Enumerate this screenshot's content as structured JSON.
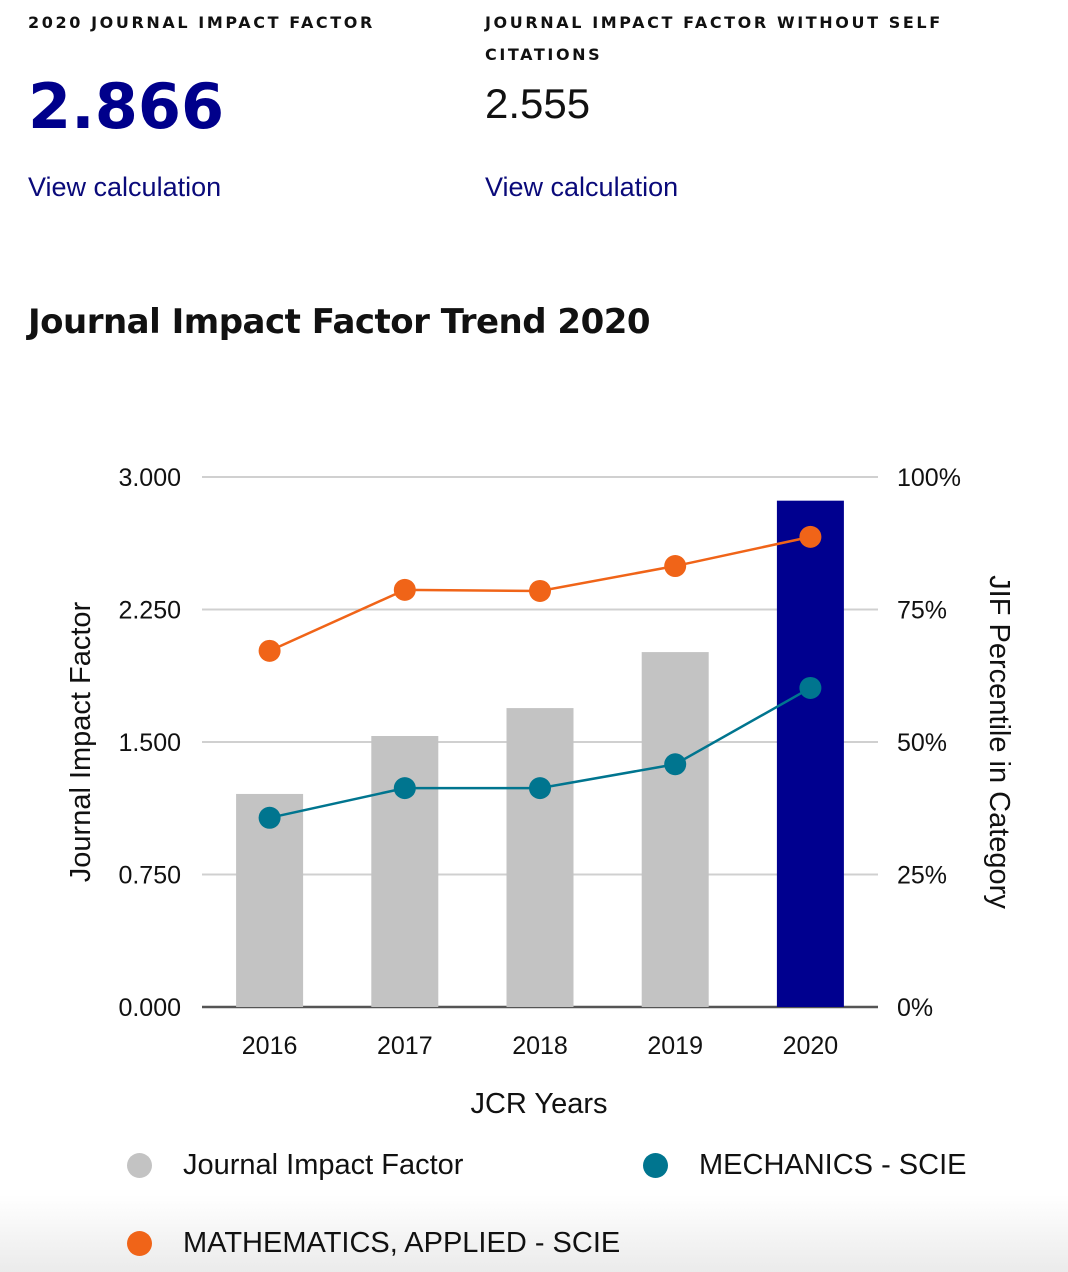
{
  "metrics": [
    {
      "label": "2020 JOURNAL IMPACT FACTOR",
      "value": "2.866",
      "link": "View calculation"
    },
    {
      "label": "JOURNAL IMPACT FACTOR WITHOUT SELF CITATIONS",
      "value": "2.555",
      "link": "View calculation"
    }
  ],
  "section_title": "Journal Impact Factor Trend 2020",
  "colors": {
    "bar_default": "#c3c3c3",
    "bar_highlight": "#00008f",
    "mechanics": "#00758f",
    "mathematics_applied": "#f06418",
    "gridline": "#d0d0d0",
    "axis": "#555555"
  },
  "chart_data": {
    "type": "bar+line",
    "title": "Journal Impact Factor Trend 2020",
    "xlabel": "JCR Years",
    "ylabel": "Journal Impact Factor",
    "y2label": "JIF Percentile in Category",
    "categories": [
      "2016",
      "2017",
      "2018",
      "2019",
      "2020"
    ],
    "ylim": [
      0,
      3
    ],
    "y2lim": [
      0,
      100
    ],
    "yticks": [
      "0.000",
      "0.750",
      "1.500",
      "2.250",
      "3.000"
    ],
    "yticks_values": [
      0,
      0.75,
      1.5,
      2.25,
      3.0
    ],
    "y2ticks": [
      "0%",
      "25%",
      "50%",
      "75%",
      "100%"
    ],
    "y2ticks_values": [
      0,
      25,
      50,
      75,
      100
    ],
    "grid": true,
    "highlight_category": "2020",
    "series": [
      {
        "name": "Journal Impact Factor",
        "kind": "bar",
        "axis": "left",
        "values": [
          1.206,
          1.534,
          1.692,
          2.009,
          2.866
        ]
      },
      {
        "name": "MECHANICS - SCIE",
        "kind": "line",
        "axis": "right",
        "values": [
          35.7,
          41.3,
          41.3,
          45.8,
          60.2
        ]
      },
      {
        "name": "MATHEMATICS, APPLIED - SCIE",
        "kind": "line",
        "axis": "right",
        "values": [
          67.2,
          78.7,
          78.5,
          83.2,
          88.7
        ]
      }
    ],
    "legend_position": "bottom"
  },
  "legend": [
    {
      "label": "Journal Impact Factor",
      "color_key": "bar_default"
    },
    {
      "label": "MECHANICS - SCIE",
      "color_key": "mechanics"
    },
    {
      "label": "MATHEMATICS, APPLIED - SCIE",
      "color_key": "mathematics_applied"
    }
  ]
}
